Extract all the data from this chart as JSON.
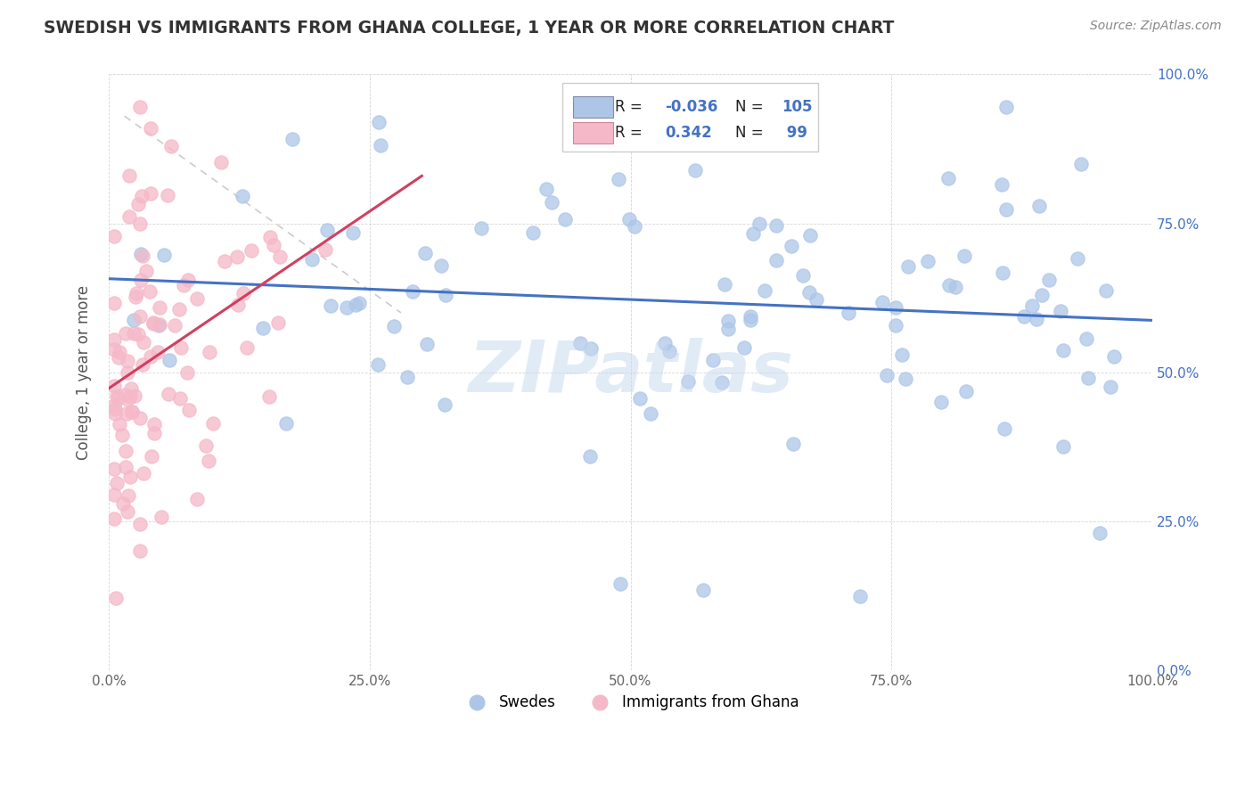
{
  "title": "SWEDISH VS IMMIGRANTS FROM GHANA COLLEGE, 1 YEAR OR MORE CORRELATION CHART",
  "source_text": "Source: ZipAtlas.com",
  "ylabel": "College, 1 year or more",
  "right_ytick_labels": [
    "0.0%",
    "25.0%",
    "50.0%",
    "75.0%",
    "100.0%"
  ],
  "right_ytick_values": [
    0,
    0.25,
    0.5,
    0.75,
    1.0
  ],
  "xlim": [
    0.0,
    1.0
  ],
  "ylim": [
    0.0,
    1.0
  ],
  "xtick_labels": [
    "0.0%",
    "25.0%",
    "50.0%",
    "75.0%",
    "100.0%"
  ],
  "xtick_values": [
    0,
    0.25,
    0.5,
    0.75,
    1.0
  ],
  "blue_R": -0.036,
  "blue_N": 105,
  "pink_R": 0.342,
  "pink_N": 99,
  "blue_color": "#adc6e8",
  "pink_color": "#f5b8c8",
  "blue_line_color": "#4472c4",
  "pink_line_color": "#d04060",
  "watermark": "ZIPatlas",
  "legend_label_swedes": "Swedes",
  "legend_label_ghana": "Immigrants from Ghana",
  "blue_scatter_seed": 42,
  "pink_scatter_seed": 77
}
